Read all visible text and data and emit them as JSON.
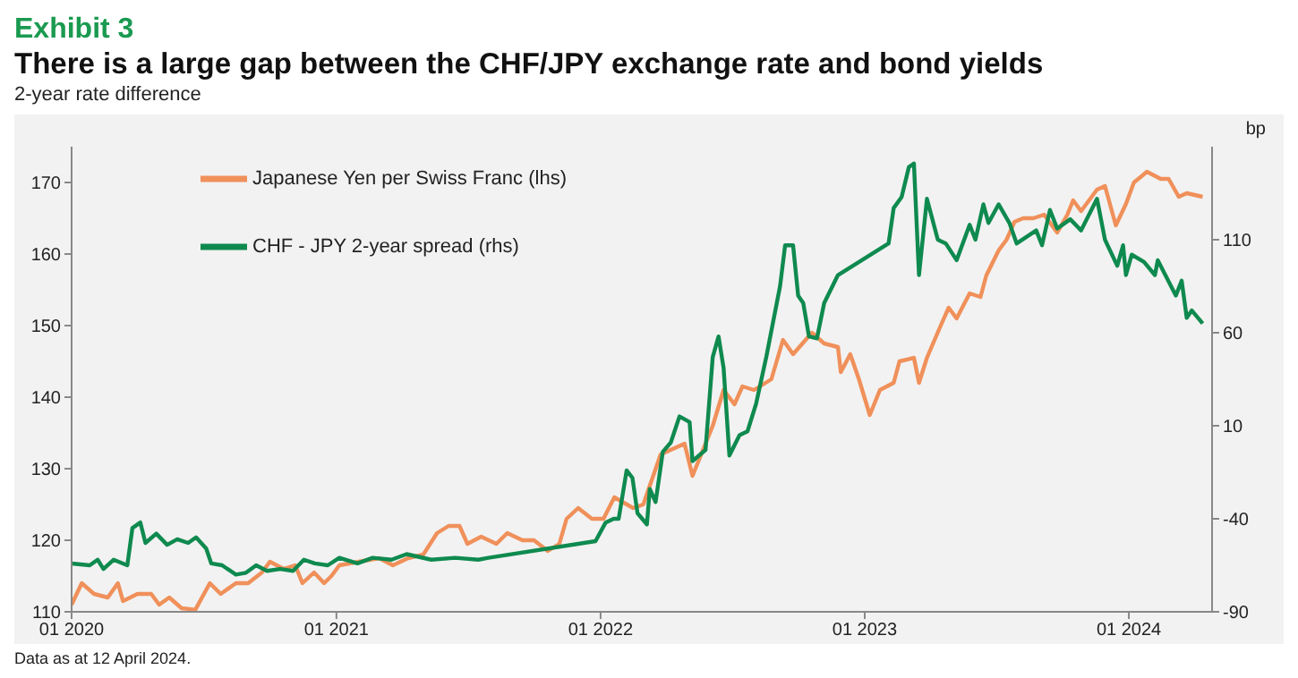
{
  "chart_data": {
    "type": "line",
    "title": "There is a large gap between the CHF/JPY exchange rate and bond yields",
    "subtitle": "2-year rate difference",
    "y2label": "bp",
    "annotations": [
      "Exhibit 3",
      "Data as at 12 April 2024."
    ],
    "xlim": [
      "2020-01-01",
      "2024-04-25"
    ],
    "xticks": [
      {
        "value": "2020-01-01",
        "label": "01 2020"
      },
      {
        "value": "2021-01-01",
        "label": "01 2021"
      },
      {
        "value": "2022-01-01",
        "label": "01 2022"
      },
      {
        "value": "2023-01-01",
        "label": "01 2023"
      },
      {
        "value": "2024-01-01",
        "label": "01 2024"
      }
    ],
    "ylim": [
      110,
      175
    ],
    "yticks": [
      110,
      120,
      130,
      140,
      150,
      160,
      170
    ],
    "y2lim": [
      -90,
      160
    ],
    "y2ticks": [
      -90,
      -40,
      10,
      60,
      110
    ],
    "legend": "top left",
    "series": [
      {
        "name": "Japanese Yen per Swiss Franc (lhs)",
        "color": "#f0905a",
        "x": [
          "2020-01-01",
          "2020-01-15",
          "2020-02-01",
          "2020-02-20",
          "2020-03-05",
          "2020-03-12",
          "2020-04-01",
          "2020-04-20",
          "2020-05-01",
          "2020-05-15",
          "2020-06-01",
          "2020-06-20",
          "2020-07-10",
          "2020-07-25",
          "2020-08-15",
          "2020-09-01",
          "2020-09-20",
          "2020-10-01",
          "2020-10-20",
          "2020-11-05",
          "2020-11-15",
          "2020-12-01",
          "2020-12-15",
          "2020-12-25",
          "2021-01-05",
          "2021-02-01",
          "2021-03-01",
          "2021-03-20",
          "2021-04-10",
          "2021-05-01",
          "2021-05-20",
          "2021-06-05",
          "2021-06-20",
          "2021-07-01",
          "2021-07-20",
          "2021-08-10",
          "2021-08-25",
          "2021-09-15",
          "2021-10-01",
          "2021-10-20",
          "2021-11-05",
          "2021-11-15",
          "2021-12-01",
          "2021-12-20",
          "2022-01-05",
          "2022-01-20",
          "2022-02-15",
          "2022-03-01",
          "2022-03-25",
          "2022-04-27",
          "2022-05-08",
          "2022-06-05",
          "2022-06-20",
          "2022-07-05",
          "2022-07-16",
          "2022-08-01",
          "2022-08-25",
          "2022-09-10",
          "2022-09-24",
          "2022-10-20",
          "2022-11-06",
          "2022-11-25",
          "2022-11-29",
          "2022-12-12",
          "2022-12-24",
          "2023-01-08",
          "2023-01-22",
          "2023-02-10",
          "2023-02-18",
          "2023-03-10",
          "2023-03-17",
          "2023-03-28",
          "2023-04-16",
          "2023-04-27",
          "2023-05-08",
          "2023-05-26",
          "2023-06-10",
          "2023-06-18",
          "2023-07-05",
          "2023-07-16",
          "2023-07-27",
          "2023-08-08",
          "2023-08-22",
          "2023-09-06",
          "2023-09-24",
          "2023-10-08",
          "2023-10-16",
          "2023-10-27",
          "2023-11-18",
          "2023-11-29",
          "2023-12-14",
          "2023-12-28",
          "2024-01-08",
          "2024-01-26",
          "2024-02-14",
          "2024-02-25",
          "2024-03-10",
          "2024-03-21",
          "2024-04-12"
        ],
        "values": [
          111,
          114,
          112.5,
          112,
          114,
          111.5,
          112.5,
          112.5,
          111,
          112,
          110.5,
          110.3,
          114,
          112.5,
          114,
          114,
          115.5,
          117,
          116,
          116.5,
          114,
          115.5,
          114,
          115,
          116.5,
          117,
          117.5,
          116.5,
          117.5,
          118,
          121,
          122,
          122,
          119.5,
          120.5,
          119.5,
          121,
          120,
          120,
          118.5,
          119.5,
          123,
          124.5,
          123,
          123,
          126,
          124.5,
          125,
          132,
          133.5,
          129,
          136,
          141,
          139,
          141.5,
          141,
          142.5,
          148,
          146,
          149,
          147.5,
          147,
          143.5,
          146,
          142.5,
          137.5,
          141,
          142,
          145,
          145.5,
          142,
          145.5,
          150,
          152.5,
          151,
          154.5,
          154,
          157,
          160.5,
          162,
          164.5,
          165,
          165,
          165.5,
          163,
          165.5,
          167.5,
          166,
          169,
          169.5,
          164,
          167,
          170,
          171.5,
          170.5,
          170.5,
          168,
          168.5,
          168
        ]
      },
      {
        "name": "CHF - JPY 2-year spread (rhs)",
        "color": "#0f8a4f",
        "axis": "y2",
        "x": [
          "2020-01-01",
          "2020-01-26",
          "2020-02-06",
          "2020-02-14",
          "2020-02-28",
          "2020-03-18",
          "2020-03-25",
          "2020-04-05",
          "2020-04-12",
          "2020-04-27",
          "2020-05-12",
          "2020-05-26",
          "2020-06-10",
          "2020-06-21",
          "2020-07-05",
          "2020-07-12",
          "2020-07-27",
          "2020-08-15",
          "2020-08-29",
          "2020-09-12",
          "2020-09-27",
          "2020-10-15",
          "2020-11-02",
          "2020-11-17",
          "2020-12-02",
          "2020-12-20",
          "2021-01-05",
          "2021-01-30",
          "2021-02-20",
          "2021-03-18",
          "2021-04-08",
          "2021-05-12",
          "2021-06-14",
          "2021-07-16",
          "2021-07-30",
          "2021-12-25",
          "2022-01-08",
          "2022-01-19",
          "2022-01-26",
          "2022-02-06",
          "2022-02-14",
          "2022-02-21",
          "2022-03-06",
          "2022-03-10",
          "2022-03-18",
          "2022-03-28",
          "2022-04-08",
          "2022-04-20",
          "2022-05-04",
          "2022-05-08",
          "2022-05-26",
          "2022-06-05",
          "2022-06-13",
          "2022-06-20",
          "2022-06-28",
          "2022-07-12",
          "2022-07-23",
          "2022-08-04",
          "2022-08-18",
          "2022-09-06",
          "2022-09-13",
          "2022-09-24",
          "2022-10-01",
          "2022-10-08",
          "2022-10-16",
          "2022-10-27",
          "2022-11-06",
          "2022-11-25",
          "2023-02-03",
          "2023-02-10",
          "2023-02-21",
          "2023-03-03",
          "2023-03-10",
          "2023-03-17",
          "2023-03-28",
          "2023-04-12",
          "2023-04-23",
          "2023-05-08",
          "2023-05-26",
          "2023-06-03",
          "2023-06-14",
          "2023-06-21",
          "2023-07-05",
          "2023-07-20",
          "2023-07-30",
          "2023-08-26",
          "2023-09-03",
          "2023-09-14",
          "2023-09-24",
          "2023-10-12",
          "2023-10-27",
          "2023-11-18",
          "2023-11-29",
          "2023-12-16",
          "2023-12-24",
          "2023-12-28",
          "2024-01-05",
          "2024-01-22",
          "2024-02-06",
          "2024-02-10",
          "2024-03-06",
          "2024-03-14",
          "2024-03-21",
          "2024-03-28",
          "2024-04-12"
        ],
        "values": [
          -64,
          -65,
          -62,
          -67,
          -62,
          -65,
          -45,
          -42,
          -53,
          -48,
          -54,
          -51,
          -53,
          -50,
          -56,
          -64,
          -65,
          -70,
          -69,
          -65,
          -68,
          -67,
          -68,
          -62,
          -64,
          -65,
          -61,
          -64,
          -61,
          -62,
          -59,
          -62,
          -61,
          -62,
          -61,
          -52,
          -42,
          -40,
          -40,
          -14,
          -18,
          -37,
          -43,
          -24,
          -31,
          -4,
          1,
          15,
          12,
          -9,
          -3,
          47,
          58,
          41,
          -6,
          5,
          7,
          22,
          47,
          85,
          107,
          107,
          80,
          76,
          58,
          57,
          76,
          91,
          108,
          127,
          133,
          149,
          151,
          91,
          132,
          110,
          108,
          99,
          118,
          110,
          129,
          119,
          129,
          119,
          108,
          115,
          107,
          126,
          116,
          121,
          115,
          132,
          110,
          96,
          107,
          91,
          102,
          98,
          91,
          99,
          80,
          88,
          68,
          72,
          65
        ]
      }
    ]
  }
}
